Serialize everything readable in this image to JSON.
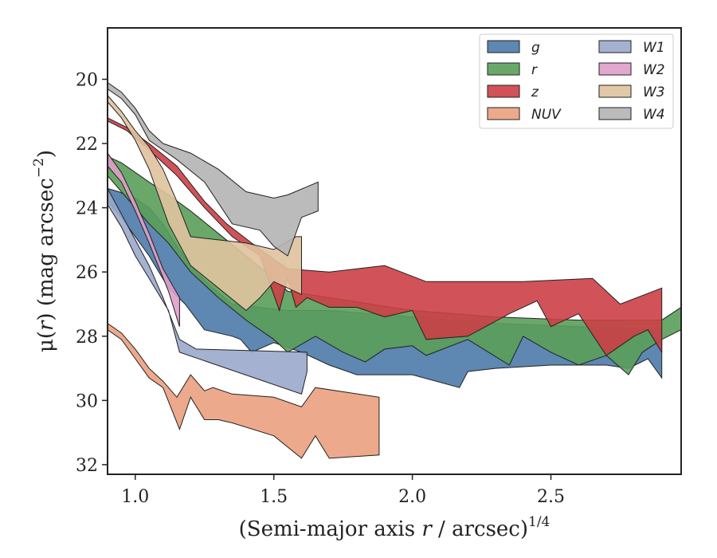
{
  "chart_data": {
    "type": "area",
    "xlabel_prefix": "(Semi-major axis ",
    "xlabel_var": "r",
    "xlabel_suffix": " / arcsec)",
    "xlabel_exp": "1/4",
    "ylabel_prefix": "μ(",
    "ylabel_var": "r",
    "ylabel_suffix": ") (mag arcsec",
    "ylabel_exp": "−2",
    "ylabel_close": ")",
    "xlim": [
      0.9,
      2.97
    ],
    "ylim": [
      32.3,
      18.4
    ],
    "y_inverted": true,
    "xticks": [
      1.0,
      1.5,
      2.0,
      2.5
    ],
    "xtick_labels": [
      "1.0",
      "1.5",
      "2.0",
      "2.5"
    ],
    "yticks": [
      20,
      22,
      24,
      26,
      28,
      30,
      32
    ],
    "ytick_labels": [
      "20",
      "22",
      "24",
      "26",
      "28",
      "30",
      "32"
    ],
    "grid": false,
    "legend_position": "top-right",
    "legend_columns": 2,
    "series": [
      {
        "name": "g",
        "color": "#4c7aa8",
        "upper": [
          [
            0.9,
            23.4
          ],
          [
            0.94,
            23.5
          ],
          [
            1.0,
            23.7
          ],
          [
            1.05,
            24.0
          ],
          [
            1.1,
            24.5
          ],
          [
            1.15,
            25.2
          ],
          [
            1.22,
            26.0
          ],
          [
            1.28,
            26.5
          ],
          [
            1.35,
            27.0
          ],
          [
            1.45,
            27.1
          ],
          [
            1.55,
            27.2
          ],
          [
            1.7,
            27.2
          ],
          [
            2.0,
            27.4
          ],
          [
            2.3,
            27.6
          ],
          [
            2.6,
            27.7
          ],
          [
            2.9,
            27.8
          ]
        ],
        "lower": [
          [
            2.9,
            29.3
          ],
          [
            2.85,
            28.7
          ],
          [
            2.78,
            29.0
          ],
          [
            2.7,
            28.9
          ],
          [
            2.5,
            28.9
          ],
          [
            2.3,
            29.0
          ],
          [
            2.2,
            29.1
          ],
          [
            2.17,
            29.6
          ],
          [
            2.0,
            29.2
          ],
          [
            1.8,
            29.2
          ],
          [
            1.7,
            28.9
          ],
          [
            1.6,
            28.5
          ],
          [
            1.5,
            28.2
          ],
          [
            1.42,
            28.5
          ],
          [
            1.38,
            28.1
          ],
          [
            1.35,
            28.0
          ],
          [
            1.25,
            27.8
          ],
          [
            1.18,
            27.0
          ],
          [
            1.12,
            26.5
          ],
          [
            1.05,
            25.5
          ],
          [
            1.0,
            24.9
          ],
          [
            0.95,
            24.3
          ],
          [
            0.9,
            23.8
          ]
        ]
      },
      {
        "name": "r",
        "color": "#5a9e5a",
        "upper": [
          [
            0.9,
            22.4
          ],
          [
            0.95,
            22.6
          ],
          [
            1.0,
            22.9
          ],
          [
            1.05,
            23.2
          ],
          [
            1.12,
            23.6
          ],
          [
            1.2,
            24.1
          ],
          [
            1.3,
            24.8
          ],
          [
            1.4,
            25.5
          ],
          [
            1.5,
            26.2
          ],
          [
            1.55,
            26.6
          ],
          [
            1.7,
            26.8
          ],
          [
            2.0,
            27.2
          ],
          [
            2.3,
            27.4
          ],
          [
            2.6,
            27.5
          ],
          [
            2.9,
            27.5
          ],
          [
            2.97,
            27.1
          ]
        ],
        "lower": [
          [
            2.97,
            27.8
          ],
          [
            2.9,
            28.1
          ],
          [
            2.83,
            28.5
          ],
          [
            2.78,
            29.2
          ],
          [
            2.7,
            28.6
          ],
          [
            2.6,
            28.9
          ],
          [
            2.5,
            28.5
          ],
          [
            2.4,
            28.0
          ],
          [
            2.35,
            28.9
          ],
          [
            2.2,
            28.1
          ],
          [
            2.05,
            28.6
          ],
          [
            2.0,
            28.3
          ],
          [
            1.9,
            28.4
          ],
          [
            1.83,
            28.8
          ],
          [
            1.75,
            28.5
          ],
          [
            1.65,
            28.0
          ],
          [
            1.55,
            28.5
          ],
          [
            1.5,
            28.1
          ],
          [
            1.4,
            27.5
          ],
          [
            1.3,
            26.8
          ],
          [
            1.2,
            26.0
          ],
          [
            1.12,
            25.1
          ],
          [
            1.05,
            24.5
          ],
          [
            1.0,
            24.0
          ],
          [
            0.95,
            23.5
          ],
          [
            0.9,
            23.0
          ]
        ]
      },
      {
        "name": "z",
        "color": "#cc3f46",
        "upper": [
          [
            0.9,
            21.2
          ],
          [
            0.97,
            21.5
          ],
          [
            1.05,
            22.0
          ],
          [
            1.15,
            22.7
          ],
          [
            1.25,
            23.8
          ],
          [
            1.33,
            24.5
          ],
          [
            1.42,
            25.1
          ],
          [
            1.5,
            25.6
          ],
          [
            1.55,
            25.9
          ],
          [
            1.7,
            26.0
          ],
          [
            1.9,
            25.8
          ],
          [
            2.05,
            26.3
          ],
          [
            2.4,
            26.3
          ],
          [
            2.65,
            26.2
          ],
          [
            2.75,
            27.0
          ],
          [
            2.9,
            26.5
          ]
        ],
        "lower": [
          [
            2.9,
            28.5
          ],
          [
            2.85,
            27.8
          ],
          [
            2.8,
            28.0
          ],
          [
            2.7,
            28.6
          ],
          [
            2.6,
            27.3
          ],
          [
            2.5,
            27.7
          ],
          [
            2.45,
            26.9
          ],
          [
            2.35,
            27.3
          ],
          [
            2.2,
            28.0
          ],
          [
            2.05,
            28.1
          ],
          [
            2.0,
            27.2
          ],
          [
            1.9,
            27.4
          ],
          [
            1.8,
            27.1
          ],
          [
            1.7,
            27.1
          ],
          [
            1.62,
            26.8
          ],
          [
            1.58,
            27.1
          ],
          [
            1.55,
            26.2
          ],
          [
            1.52,
            27.2
          ],
          [
            1.45,
            25.5
          ],
          [
            1.35,
            24.9
          ],
          [
            1.25,
            24.0
          ],
          [
            1.15,
            23.0
          ],
          [
            1.05,
            22.2
          ],
          [
            0.97,
            21.6
          ],
          [
            0.9,
            21.3
          ]
        ]
      },
      {
        "name": "NUV",
        "color": "#eba07e",
        "upper": [
          [
            0.9,
            27.6
          ],
          [
            0.95,
            27.9
          ],
          [
            1.0,
            28.4
          ],
          [
            1.05,
            29.0
          ],
          [
            1.1,
            29.4
          ],
          [
            1.15,
            29.9
          ],
          [
            1.2,
            29.2
          ],
          [
            1.25,
            29.7
          ],
          [
            1.28,
            29.6
          ],
          [
            1.35,
            29.8
          ],
          [
            1.5,
            29.9
          ],
          [
            1.6,
            30.2
          ],
          [
            1.65,
            29.6
          ],
          [
            1.88,
            29.9
          ]
        ],
        "lower": [
          [
            1.88,
            31.7
          ],
          [
            1.7,
            31.8
          ],
          [
            1.65,
            31.1
          ],
          [
            1.6,
            31.8
          ],
          [
            1.5,
            31.1
          ],
          [
            1.35,
            30.7
          ],
          [
            1.3,
            30.6
          ],
          [
            1.25,
            30.6
          ],
          [
            1.2,
            29.9
          ],
          [
            1.16,
            30.9
          ],
          [
            1.1,
            29.6
          ],
          [
            1.05,
            29.3
          ],
          [
            1.0,
            28.7
          ],
          [
            0.95,
            28.1
          ],
          [
            0.9,
            27.8
          ]
        ]
      },
      {
        "name": "W1",
        "color": "#9aa9cc",
        "upper": [
          [
            0.9,
            23.4
          ],
          [
            0.95,
            24.2
          ],
          [
            1.0,
            25.0
          ],
          [
            1.05,
            25.8
          ],
          [
            1.1,
            26.8
          ],
          [
            1.16,
            28.1
          ],
          [
            1.22,
            28.4
          ],
          [
            1.62,
            28.5
          ]
        ],
        "lower": [
          [
            1.62,
            29.1
          ],
          [
            1.6,
            29.8
          ],
          [
            1.16,
            28.5
          ],
          [
            1.12,
            27.2
          ],
          [
            1.05,
            26.2
          ],
          [
            1.0,
            25.5
          ],
          [
            0.95,
            24.6
          ],
          [
            0.9,
            23.9
          ]
        ]
      },
      {
        "name": "W2",
        "color": "#df9fc9",
        "upper": [
          [
            0.9,
            22.3
          ],
          [
            0.95,
            22.9
          ],
          [
            1.0,
            23.8
          ],
          [
            1.05,
            24.8
          ],
          [
            1.1,
            25.9
          ],
          [
            1.16,
            26.8
          ],
          [
            1.16,
            27.7
          ]
        ],
        "lower": [
          [
            1.16,
            27.7
          ],
          [
            1.12,
            26.6
          ],
          [
            1.05,
            25.1
          ],
          [
            1.0,
            24.1
          ],
          [
            0.95,
            23.2
          ],
          [
            0.9,
            22.7
          ]
        ]
      },
      {
        "name": "W3",
        "color": "#e0c29f",
        "upper": [
          [
            0.9,
            20.5
          ],
          [
            0.95,
            21.0
          ],
          [
            1.0,
            21.6
          ],
          [
            1.05,
            22.1
          ],
          [
            1.1,
            22.8
          ],
          [
            1.15,
            23.8
          ],
          [
            1.2,
            24.9
          ],
          [
            1.3,
            25.0
          ],
          [
            1.4,
            25.1
          ],
          [
            1.5,
            25.3
          ],
          [
            1.58,
            24.9
          ],
          [
            1.6,
            24.9
          ]
        ],
        "lower": [
          [
            1.6,
            26.7
          ],
          [
            1.55,
            26.5
          ],
          [
            1.5,
            26.3
          ],
          [
            1.45,
            26.8
          ],
          [
            1.4,
            27.2
          ],
          [
            1.3,
            26.5
          ],
          [
            1.2,
            25.8
          ],
          [
            1.12,
            24.5
          ],
          [
            1.05,
            22.8
          ],
          [
            1.0,
            21.9
          ],
          [
            0.95,
            21.2
          ],
          [
            0.9,
            20.7
          ]
        ]
      },
      {
        "name": "W4",
        "color": "#b4b4b4",
        "upper": [
          [
            0.9,
            20.1
          ],
          [
            0.95,
            20.4
          ],
          [
            1.0,
            20.9
          ],
          [
            1.05,
            21.6
          ],
          [
            1.1,
            22.0
          ],
          [
            1.2,
            22.3
          ],
          [
            1.3,
            22.8
          ],
          [
            1.4,
            23.5
          ],
          [
            1.5,
            23.7
          ],
          [
            1.55,
            23.6
          ],
          [
            1.66,
            23.2
          ]
        ],
        "lower": [
          [
            1.66,
            24.1
          ],
          [
            1.6,
            24.3
          ],
          [
            1.55,
            25.5
          ],
          [
            1.5,
            25.2
          ],
          [
            1.45,
            24.7
          ],
          [
            1.35,
            24.5
          ],
          [
            1.25,
            23.2
          ],
          [
            1.15,
            22.5
          ],
          [
            1.05,
            21.9
          ],
          [
            1.0,
            21.1
          ],
          [
            0.95,
            20.6
          ],
          [
            0.9,
            20.3
          ]
        ]
      }
    ]
  }
}
